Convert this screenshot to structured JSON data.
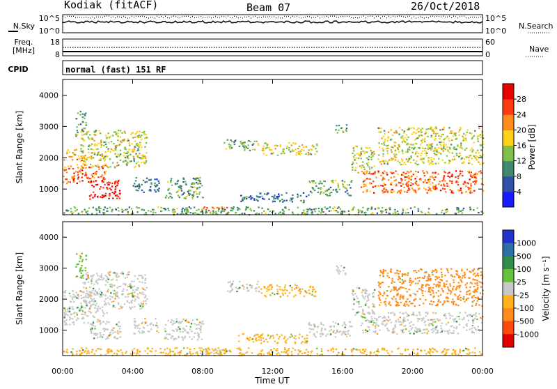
{
  "header": {
    "station": "Kodiak (fitACF)",
    "beam": "Beam 07",
    "date": "26/Oct/2018"
  },
  "panels": {
    "nsky": {
      "left_label": "N.Sky",
      "ticks_left": [
        "10^5",
        "10^0"
      ],
      "ticks_right": [
        "10^5",
        "10^0"
      ],
      "right_label": "N.Search"
    },
    "freq": {
      "left_label_1": "Freq.",
      "left_label_2": "[MHz]",
      "ticks_left": [
        "18",
        "8"
      ],
      "ticks_right": [
        "60",
        "0"
      ],
      "right_label": "Nave"
    },
    "cpid": {
      "label": "CPID",
      "value": "normal (fast) 151 RF"
    }
  },
  "axes": {
    "ylabel": "Slant Range [km]",
    "xlabel": "Time UT",
    "yticks": [
      "1000",
      "2000",
      "3000",
      "4000"
    ],
    "xticks": [
      "00:00",
      "04:00",
      "08:00",
      "12:00",
      "16:00",
      "20:00",
      "00:00"
    ]
  },
  "colorbars": {
    "power": {
      "label": "Power [dB]",
      "ticks": [
        "4",
        "8",
        "12",
        "16",
        "20",
        "24",
        "28"
      ],
      "colors": [
        "#1a1aff",
        "#2f4faa",
        "#3f8a6f",
        "#7fc04a",
        "#ffd21a",
        "#ff8c1a",
        "#ff3a10",
        "#e60000"
      ]
    },
    "velocity": {
      "label": "Velocity [m s⁻¹]",
      "ticks": [
        "1000",
        "500",
        "100",
        "25",
        "-25",
        "-100",
        "-500",
        "-1000"
      ],
      "colors": [
        "#2233cc",
        "#2f6fa8",
        "#2f8f4a",
        "#66c23a",
        "#c8c8c8",
        "#ffb21a",
        "#ff8c1a",
        "#ff4a10",
        "#e00000"
      ]
    }
  },
  "chart_data": {
    "type": "heatmap",
    "title": "Kodiak (fitACF) Beam 07 26/Oct/2018",
    "xlabel": "Time UT",
    "ylabel": "Slant Range [km]",
    "xlim": [
      0,
      24
    ],
    "ylim": [
      180,
      4500
    ],
    "grid": false,
    "panels": [
      "Power [dB]",
      "Velocity [m s^-1]"
    ],
    "regions": [
      {
        "t": [
          0.0,
          2.5
        ],
        "r": [
          1200,
          1800
        ],
        "power": 24,
        "velocity": 25
      },
      {
        "t": [
          1.5,
          3.3
        ],
        "r": [
          700,
          1300
        ],
        "power": 29,
        "velocity": 25
      },
      {
        "t": [
          0.0,
          1.7
        ],
        "r": [
          1900,
          2300
        ],
        "power": 20,
        "velocity": 25
      },
      {
        "t": [
          0.7,
          1.3
        ],
        "r": [
          2700,
          3500
        ],
        "power": 12,
        "velocity": 100
      },
      {
        "t": [
          1.0,
          4.8
        ],
        "r": [
          1700,
          2900
        ],
        "power": 16,
        "velocity": 25
      },
      {
        "t": [
          4.0,
          5.5
        ],
        "r": [
          900,
          1400
        ],
        "power": 8,
        "velocity": 25
      },
      {
        "t": [
          5.8,
          8.0
        ],
        "r": [
          700,
          1400
        ],
        "power": 12,
        "velocity": 25
      },
      {
        "t": [
          7.8,
          9.5
        ],
        "r": [
          250,
          450
        ],
        "power": 24,
        "velocity": 25
      },
      {
        "t": [
          9.2,
          11.2
        ],
        "r": [
          2250,
          2600
        ],
        "power": 12,
        "velocity": 25
      },
      {
        "t": [
          11.3,
          14.5
        ],
        "r": [
          2100,
          2500
        ],
        "power": 16,
        "velocity": -25
      },
      {
        "t": [
          10.0,
          14.0
        ],
        "r": [
          600,
          900
        ],
        "power": 8,
        "velocity": -25
      },
      {
        "t": [
          14.0,
          16.5
        ],
        "r": [
          800,
          1300
        ],
        "power": 12,
        "velocity": 25
      },
      {
        "t": [
          16.5,
          17.8
        ],
        "r": [
          1500,
          2400
        ],
        "power": 16,
        "velocity": 25
      },
      {
        "t": [
          17.0,
          24.0
        ],
        "r": [
          900,
          1600
        ],
        "power": 24,
        "velocity": 25
      },
      {
        "t": [
          18.0,
          24.0
        ],
        "r": [
          1800,
          3000
        ],
        "power": 16,
        "velocity": -100
      },
      {
        "t": [
          15.5,
          16.2
        ],
        "r": [
          2800,
          3100
        ],
        "power": 12,
        "velocity": 25
      },
      {
        "t": [
          0.0,
          24.0
        ],
        "r": [
          200,
          450
        ],
        "power": 12,
        "velocity": -25
      }
    ]
  }
}
